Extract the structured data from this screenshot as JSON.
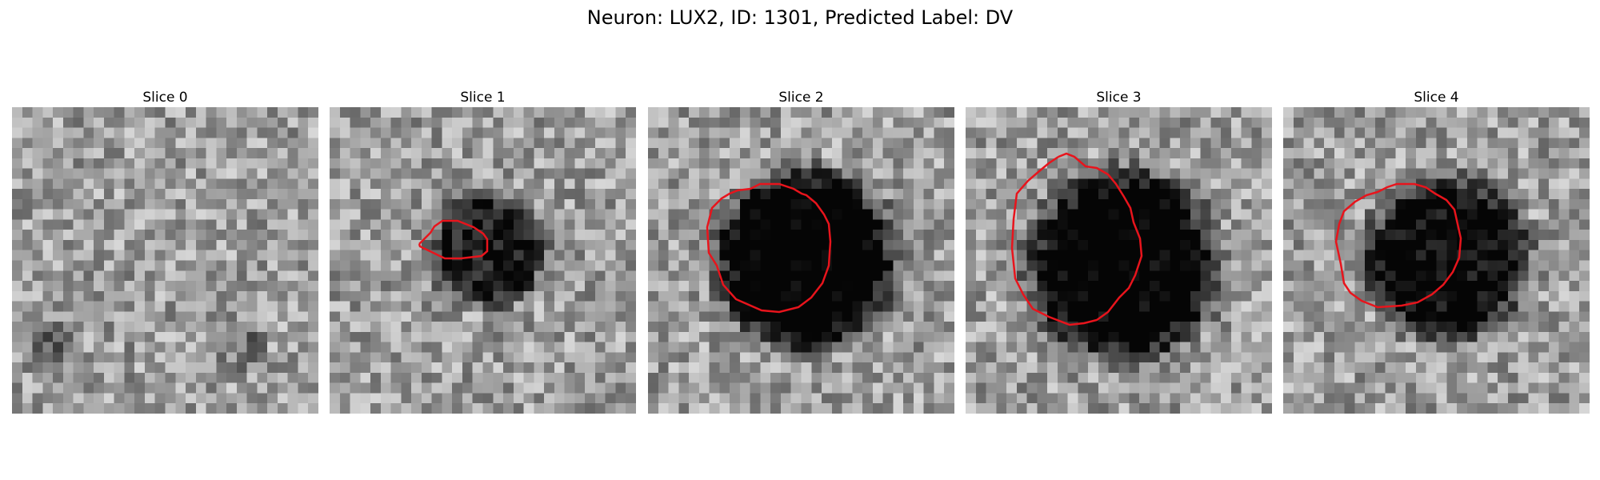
{
  "figure": {
    "title": "Neuron: LUX2, ID: 1301, Predicted Label: DV"
  },
  "slices": [
    {
      "label": "Slice 0",
      "has_contour": false
    },
    {
      "label": "Slice 1",
      "has_contour": true
    },
    {
      "label": "Slice 2",
      "has_contour": true
    },
    {
      "label": "Slice 3",
      "has_contour": true
    },
    {
      "label": "Slice 4",
      "has_contour": true
    }
  ],
  "colors": {
    "contour": "#e8141c"
  }
}
